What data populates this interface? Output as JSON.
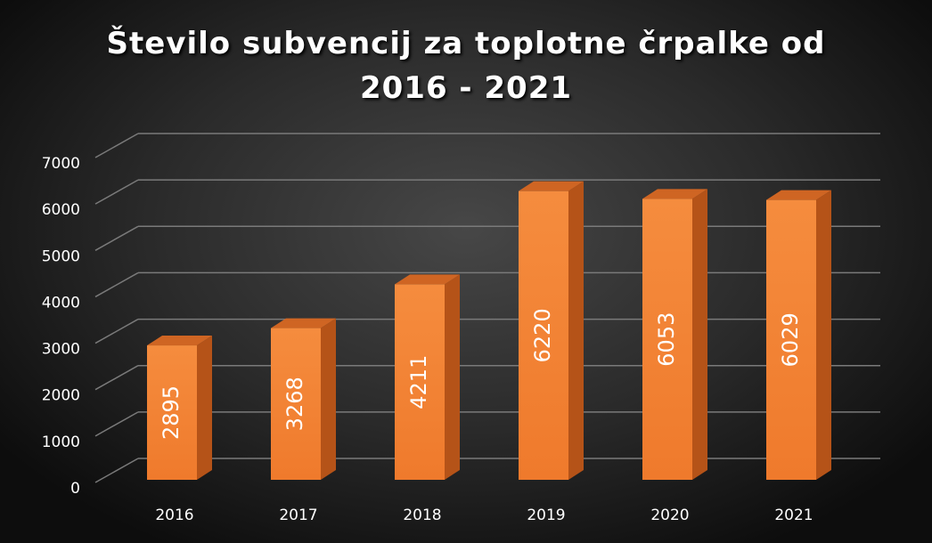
{
  "chart_data": {
    "type": "bar",
    "title_lines": [
      "Število subvencij za toplotne črpalke od",
      "2016 - 2021"
    ],
    "categories": [
      "2016",
      "2017",
      "2018",
      "2019",
      "2020",
      "2021"
    ],
    "values": [
      2895,
      3268,
      4211,
      6220,
      6053,
      6029
    ],
    "data_labels": [
      "2895",
      "3268",
      "4211",
      "6220",
      "6053",
      "6029"
    ],
    "ylim": [
      0,
      7000
    ],
    "yticks": [
      "0",
      "1000",
      "2000",
      "3000",
      "4000",
      "5000",
      "6000",
      "7000"
    ],
    "grid": true,
    "legend": "none",
    "colors": {
      "bar_front": "#ef7a2c",
      "bar_front_light": "#f58c3e",
      "bar_side": "#b55318",
      "bar_top": "#cf6523",
      "gridline": "#7a7a7a",
      "text": "#ffffff"
    }
  }
}
